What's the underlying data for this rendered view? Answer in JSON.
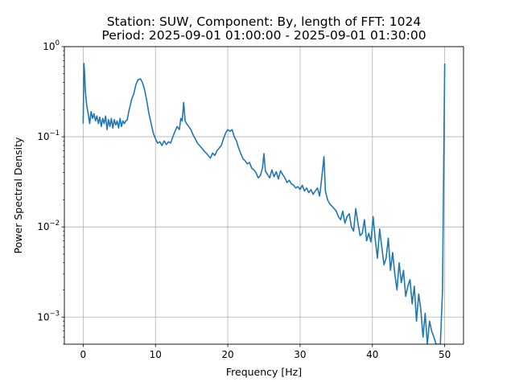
{
  "chart_data": {
    "type": "line",
    "title_line1": "Station: SUW, Component: By, length of FFT: 1024",
    "title_line2": "Period: 2025-09-01 01:00:00 - 2025-09-01 01:30:00",
    "xlabel": "Frequency [Hz]",
    "ylabel": "Power Spectral Density",
    "xlim": [
      -2.6,
      52.6
    ],
    "ylim": [
      0.0005,
      1.0
    ],
    "yscale": "log",
    "grid": true,
    "color": "#1f77b4",
    "x_ticks": [
      {
        "value": 0,
        "label": "0"
      },
      {
        "value": 10,
        "label": "10"
      },
      {
        "value": 20,
        "label": "20"
      },
      {
        "value": 30,
        "label": "30"
      },
      {
        "value": 40,
        "label": "40"
      },
      {
        "value": 50,
        "label": "50"
      }
    ],
    "y_ticks": [
      {
        "value": 0.001,
        "base": "10",
        "exp": "−3"
      },
      {
        "value": 0.01,
        "base": "10",
        "exp": "−2"
      },
      {
        "value": 0.1,
        "base": "10",
        "exp": "−1"
      },
      {
        "value": 1,
        "base": "10",
        "exp": "0"
      }
    ],
    "series": [
      {
        "x": [
          0.0,
          0.1,
          0.2,
          0.3,
          0.5,
          0.7,
          0.9,
          1.1,
          1.3,
          1.5,
          1.7,
          1.9,
          2.1,
          2.3,
          2.5,
          2.7,
          2.9,
          3.1,
          3.3,
          3.5,
          3.7,
          3.9,
          4.1,
          4.3,
          4.5,
          4.7,
          4.9,
          5.1,
          5.3,
          5.5,
          5.7,
          5.9,
          6.1,
          6.3,
          6.5,
          6.7,
          7.0,
          7.3,
          7.6,
          7.9,
          8.2,
          8.5,
          8.8,
          9.1,
          9.4,
          9.7,
          10.0,
          10.3,
          10.6,
          10.9,
          11.2,
          11.5,
          11.8,
          12.1,
          12.4,
          12.7,
          13.0,
          13.3,
          13.5,
          13.7,
          13.9,
          14.1,
          14.3,
          14.6,
          14.9,
          15.2,
          15.5,
          15.8,
          16.1,
          16.4,
          16.7,
          17.0,
          17.3,
          17.6,
          17.9,
          18.2,
          18.5,
          18.8,
          19.1,
          19.4,
          19.7,
          20.0,
          20.3,
          20.6,
          20.9,
          21.2,
          21.5,
          21.8,
          22.1,
          22.4,
          22.7,
          23.0,
          23.3,
          23.6,
          23.9,
          24.2,
          24.5,
          24.8,
          25.0,
          25.2,
          25.5,
          25.8,
          26.1,
          26.4,
          26.7,
          27.0,
          27.3,
          27.6,
          27.9,
          28.2,
          28.5,
          28.8,
          29.1,
          29.4,
          29.7,
          30.0,
          30.3,
          30.6,
          30.9,
          31.2,
          31.5,
          31.8,
          32.1,
          32.4,
          32.7,
          32.9,
          33.1,
          33.3,
          33.5,
          33.8,
          34.1,
          34.4,
          34.7,
          35.0,
          35.3,
          35.6,
          35.9,
          36.2,
          36.5,
          36.8,
          37.1,
          37.4,
          37.7,
          38.0,
          38.3,
          38.6,
          38.9,
          39.2,
          39.5,
          39.8,
          40.1,
          40.4,
          40.7,
          41.0,
          41.3,
          41.6,
          41.9,
          42.2,
          42.5,
          42.8,
          43.1,
          43.4,
          43.7,
          44.0,
          44.3,
          44.6,
          44.9,
          45.2,
          45.5,
          45.8,
          46.1,
          46.4,
          46.7,
          47.0,
          47.3,
          47.6,
          47.9,
          48.2,
          48.5,
          48.8,
          49.1,
          49.4,
          49.7,
          49.9,
          50.0
        ],
        "y": [
          0.14,
          0.65,
          0.5,
          0.32,
          0.22,
          0.18,
          0.14,
          0.19,
          0.16,
          0.18,
          0.15,
          0.17,
          0.14,
          0.165,
          0.13,
          0.16,
          0.14,
          0.17,
          0.12,
          0.155,
          0.13,
          0.16,
          0.125,
          0.155,
          0.135,
          0.15,
          0.125,
          0.16,
          0.13,
          0.15,
          0.14,
          0.15,
          0.155,
          0.19,
          0.22,
          0.26,
          0.3,
          0.38,
          0.43,
          0.44,
          0.4,
          0.33,
          0.25,
          0.18,
          0.14,
          0.11,
          0.095,
          0.085,
          0.088,
          0.08,
          0.09,
          0.082,
          0.088,
          0.085,
          0.1,
          0.115,
          0.13,
          0.12,
          0.16,
          0.15,
          0.24,
          0.15,
          0.14,
          0.13,
          0.12,
          0.105,
          0.095,
          0.085,
          0.08,
          0.075,
          0.07,
          0.066,
          0.062,
          0.058,
          0.066,
          0.062,
          0.07,
          0.075,
          0.08,
          0.095,
          0.11,
          0.12,
          0.115,
          0.12,
          0.1,
          0.09,
          0.075,
          0.065,
          0.057,
          0.054,
          0.05,
          0.052,
          0.045,
          0.043,
          0.04,
          0.035,
          0.037,
          0.045,
          0.065,
          0.042,
          0.038,
          0.035,
          0.043,
          0.036,
          0.041,
          0.034,
          0.042,
          0.038,
          0.035,
          0.031,
          0.033,
          0.03,
          0.029,
          0.027,
          0.028,
          0.026,
          0.029,
          0.025,
          0.027,
          0.024,
          0.026,
          0.023,
          0.025,
          0.027,
          0.022,
          0.03,
          0.042,
          0.06,
          0.025,
          0.02,
          0.018,
          0.017,
          0.016,
          0.015,
          0.013,
          0.012,
          0.015,
          0.011,
          0.013,
          0.014,
          0.01,
          0.009,
          0.016,
          0.011,
          0.008,
          0.0085,
          0.012,
          0.007,
          0.0085,
          0.0068,
          0.013,
          0.0072,
          0.0045,
          0.0095,
          0.006,
          0.0038,
          0.0045,
          0.0075,
          0.0033,
          0.0052,
          0.003,
          0.002,
          0.004,
          0.0024,
          0.0033,
          0.0017,
          0.0022,
          0.0026,
          0.0014,
          0.0022,
          0.0009,
          0.0018,
          0.0012,
          0.0006,
          0.0011,
          0.0005,
          0.0009,
          0.0007,
          0.0006,
          0.0005,
          0.0005,
          0.0005,
          0.002,
          0.1,
          0.65
        ]
      }
    ]
  }
}
